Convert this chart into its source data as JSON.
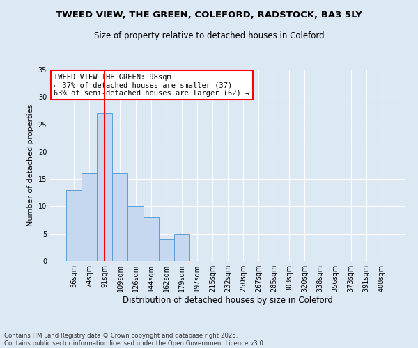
{
  "title1": "TWEED VIEW, THE GREEN, COLEFORD, RADSTOCK, BA3 5LY",
  "title2": "Size of property relative to detached houses in Coleford",
  "xlabel": "Distribution of detached houses by size in Coleford",
  "ylabel": "Number of detached properties",
  "categories": [
    "56sqm",
    "74sqm",
    "91sqm",
    "109sqm",
    "126sqm",
    "144sqm",
    "162sqm",
    "179sqm",
    "197sqm",
    "215sqm",
    "232sqm",
    "250sqm",
    "267sqm",
    "285sqm",
    "303sqm",
    "320sqm",
    "338sqm",
    "356sqm",
    "373sqm",
    "391sqm",
    "408sqm"
  ],
  "values": [
    13,
    16,
    27,
    16,
    10,
    8,
    4,
    5,
    0,
    0,
    0,
    0,
    0,
    0,
    0,
    0,
    0,
    0,
    0,
    0,
    0
  ],
  "bar_color": "#c5d8f0",
  "bar_edge_color": "#5a9fd4",
  "vline_x": 2,
  "vline_color": "red",
  "annotation_text": "TWEED VIEW THE GREEN: 98sqm\n← 37% of detached houses are smaller (37)\n63% of semi-detached houses are larger (62) →",
  "annotation_box_color": "white",
  "annotation_box_edge": "red",
  "background_color": "#dde8f5",
  "plot_bg_color": "#dde8f5",
  "footer": "Contains HM Land Registry data © Crown copyright and database right 2025.\nContains public sector information licensed under the Open Government Licence v3.0.",
  "ylim": [
    0,
    35
  ],
  "yticks": [
    0,
    5,
    10,
    15,
    20,
    25,
    30,
    35
  ],
  "title1_fontsize": 9.5,
  "title2_fontsize": 8.5,
  "ylabel_fontsize": 8,
  "xlabel_fontsize": 8.5,
  "tick_fontsize": 7,
  "footer_fontsize": 6.2,
  "annot_fontsize": 7.5
}
